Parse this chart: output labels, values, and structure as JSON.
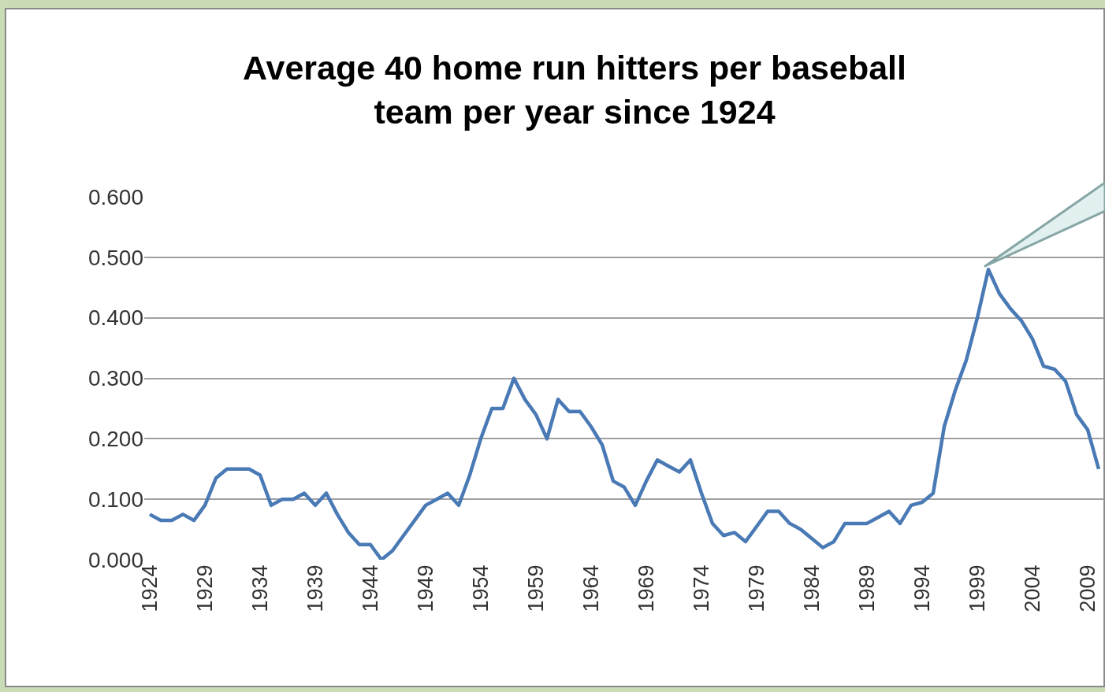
{
  "chart_data": {
    "type": "line",
    "title": "Average 40 home run hitters per baseball\nteam per year since 1924",
    "x": [
      1924,
      1925,
      1926,
      1927,
      1928,
      1929,
      1930,
      1931,
      1932,
      1933,
      1934,
      1935,
      1936,
      1937,
      1938,
      1939,
      1940,
      1941,
      1942,
      1943,
      1944,
      1945,
      1946,
      1947,
      1948,
      1949,
      1950,
      1951,
      1952,
      1953,
      1954,
      1955,
      1956,
      1957,
      1958,
      1959,
      1960,
      1961,
      1962,
      1963,
      1964,
      1965,
      1966,
      1967,
      1968,
      1969,
      1970,
      1971,
      1972,
      1973,
      1974,
      1975,
      1976,
      1977,
      1978,
      1979,
      1980,
      1981,
      1982,
      1983,
      1984,
      1985,
      1986,
      1987,
      1988,
      1989,
      1990,
      1991,
      1992,
      1993,
      1994,
      1995,
      1996,
      1997,
      1998,
      1999,
      2000,
      2001,
      2002,
      2003,
      2004,
      2005,
      2006,
      2007,
      2008,
      2009,
      2010
    ],
    "series": [
      {
        "color": "#4a7ab5",
        "values": [
          0.075,
          0.065,
          0.065,
          0.075,
          0.065,
          0.09,
          0.135,
          0.15,
          0.15,
          0.15,
          0.14,
          0.09,
          0.1,
          0.1,
          0.11,
          0.09,
          0.11,
          0.075,
          0.045,
          0.025,
          0.025,
          0.0,
          0.015,
          0.04,
          0.065,
          0.09,
          0.1,
          0.11,
          0.09,
          0.14,
          0.2,
          0.25,
          0.25,
          0.3,
          0.265,
          0.24,
          0.2,
          0.265,
          0.245,
          0.245,
          0.22,
          0.19,
          0.13,
          0.12,
          0.09,
          0.13,
          0.165,
          0.155,
          0.145,
          0.165,
          0.11,
          0.06,
          0.04,
          0.045,
          0.03,
          0.055,
          0.08,
          0.08,
          0.06,
          0.05,
          0.035,
          0.02,
          0.03,
          0.06,
          0.06,
          0.06,
          0.07,
          0.08,
          0.06,
          0.09,
          0.095,
          0.11,
          0.22,
          0.28,
          0.33,
          0.4,
          0.48,
          0.44,
          0.415,
          0.395,
          0.365,
          0.32,
          0.315,
          0.295,
          0.24,
          0.215,
          0.15
        ]
      }
    ],
    "xlim": [
      1923.5,
      2010.5
    ],
    "xticks": [
      1924,
      1929,
      1934,
      1939,
      1944,
      1949,
      1954,
      1959,
      1964,
      1969,
      1974,
      1979,
      1984,
      1989,
      1994,
      1999,
      2004,
      2009
    ],
    "ylim": [
      0,
      0.6
    ],
    "yticks": [
      {
        "value": 0,
        "label": "0.000"
      },
      {
        "value": 0.1,
        "label": "0.100"
      },
      {
        "value": 0.2,
        "label": "0.200"
      },
      {
        "value": 0.3,
        "label": "0.300"
      },
      {
        "value": 0.4,
        "label": "0.400"
      },
      {
        "value": 0.5,
        "label": "0.500"
      },
      {
        "value": 0.6,
        "label": "0.600"
      }
    ],
    "grid": "y",
    "marker": "none",
    "line_style": "solid"
  }
}
